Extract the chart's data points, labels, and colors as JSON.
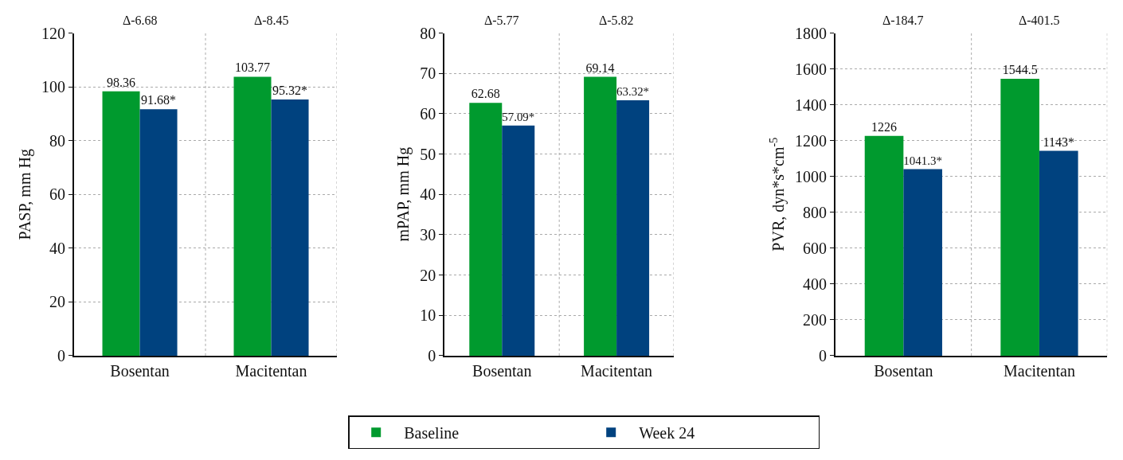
{
  "chart_data": [
    {
      "type": "bar",
      "categories": [
        "Bosentan",
        "Macitentan"
      ],
      "ylabel": "PASP, mm Hg",
      "ylim": [
        0,
        120
      ],
      "yticks": [
        0,
        20,
        40,
        60,
        80,
        100,
        120
      ],
      "grid": true,
      "legend": "bottom",
      "annotations": [
        "Δ-6.68",
        "Δ-8.45"
      ],
      "series": [
        {
          "name": "Baseline",
          "color": "#009a2e",
          "values": [
            98.36,
            103.77
          ],
          "value_labels": [
            "98.36",
            "103.77"
          ]
        },
        {
          "name": "Week 24",
          "color": "#00427f",
          "values": [
            91.68,
            95.32
          ],
          "value_labels": [
            "91.68*",
            "95.32*"
          ]
        }
      ]
    },
    {
      "type": "bar",
      "categories": [
        "Bosentan",
        "Macitentan"
      ],
      "ylabel": "mPAP, mm Hg",
      "ylim": [
        0,
        80
      ],
      "yticks": [
        0,
        10,
        20,
        30,
        40,
        50,
        60,
        70,
        80
      ],
      "grid": true,
      "legend": "bottom",
      "annotations": [
        "Δ-5.77",
        "Δ-5.82"
      ],
      "series": [
        {
          "name": "Baseline",
          "color": "#009a2e",
          "values": [
            62.68,
            69.14
          ],
          "value_labels": [
            "62.68",
            "69.14"
          ]
        },
        {
          "name": "Week 24",
          "color": "#00427f",
          "values": [
            57.09,
            63.32
          ],
          "value_labels": [
            "57.09*",
            "63.32*"
          ]
        }
      ]
    },
    {
      "type": "bar",
      "categories": [
        "Bosentan",
        "Macitentan"
      ],
      "ylabel": "PVR, dyn*s*cm$^{-5}$",
      "ylim": [
        0,
        1800
      ],
      "yticks": [
        0,
        200,
        400,
        600,
        800,
        1000,
        1200,
        1400,
        1600,
        1800
      ],
      "grid": true,
      "legend": "bottom",
      "annotations": [
        "Δ-184.7",
        "Δ-401.5"
      ],
      "series": [
        {
          "name": "Baseline",
          "color": "#009a2e",
          "values": [
            1226,
            1544.5
          ],
          "value_labels": [
            "1226",
            "1544.5"
          ]
        },
        {
          "name": "Week 24",
          "color": "#00427f",
          "values": [
            1041.3,
            1143
          ],
          "value_labels": [
            "1041.3*",
            "1143*"
          ]
        }
      ]
    }
  ]
}
